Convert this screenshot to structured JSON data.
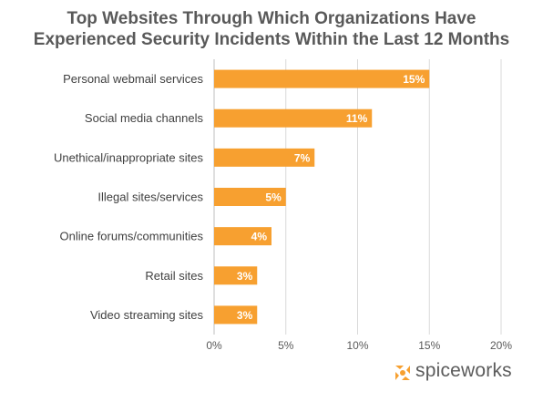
{
  "chart_data": {
    "type": "bar",
    "orientation": "horizontal",
    "title_line1": "Top Websites Through Which Organizations Have",
    "title_line2": "Experienced Security Incidents Within the Last 12 Months",
    "categories": [
      "Personal webmail services",
      "Social media channels",
      "Unethical/inappropriate sites",
      "Illegal sites/services",
      "Online forums/communities",
      "Retail sites",
      "Video streaming sites"
    ],
    "values": [
      15,
      11,
      7,
      5,
      4,
      3,
      3
    ],
    "data_labels": [
      "15%",
      "11%",
      "7%",
      "5%",
      "4%",
      "3%",
      "3%"
    ],
    "xlim": [
      0,
      20
    ],
    "xticks": [
      0,
      5,
      10,
      15,
      20
    ],
    "xtick_labels": [
      "0%",
      "5%",
      "10%",
      "15%",
      "20%"
    ],
    "xlabel": "",
    "ylabel": "",
    "grid": "vertical",
    "bar_color": "#F7A030"
  },
  "brand": {
    "name": "spiceworks",
    "logo_icon": "spiceworks-logo-icon",
    "logo_color": "#F7A030"
  }
}
